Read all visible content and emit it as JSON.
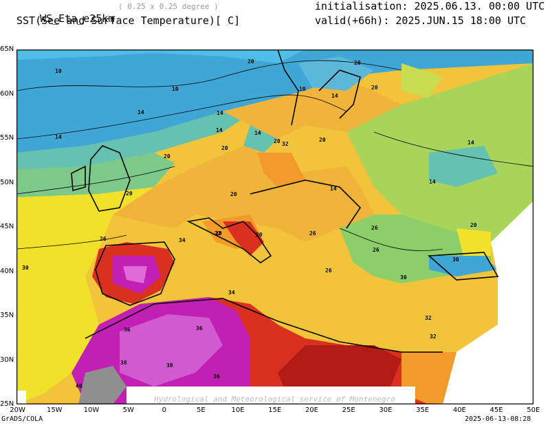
{
  "header": {
    "model": "WS_Eta_e25km",
    "resolution": "( 0.25 x 0.25 degree )",
    "initialisation": "initialisation: 2025.06.13. 00:00 UTC",
    "field": "SST(See and Surface Temperature)[ C]",
    "valid": "valid(+66h): 2025.JUN.15 18:00 UTC"
  },
  "map": {
    "lat_labels": [
      "65N",
      "60N",
      "55N",
      "50N",
      "45N",
      "40N",
      "35N",
      "30N",
      "25N"
    ],
    "lon_labels": [
      "20W",
      "15W",
      "10W",
      "5W",
      "0",
      "5E",
      "10E",
      "15E",
      "20E",
      "25E",
      "30E",
      "35E",
      "40E",
      "45E",
      "50E"
    ],
    "contour_labels": [
      "10",
      "10",
      "10",
      "14",
      "14",
      "14",
      "14",
      "14",
      "14",
      "14",
      "14",
      "14",
      "20",
      "20",
      "20",
      "20",
      "20",
      "20",
      "20",
      "20",
      "20",
      "20",
      "20",
      "20",
      "26",
      "26",
      "26",
      "26",
      "26",
      "30",
      "30",
      "30",
      "32",
      "32",
      "32",
      "32",
      "34",
      "34",
      "36",
      "36",
      "36",
      "38",
      "38",
      "40"
    ],
    "watermark": "Hydrological and Meteorological service of Montenegro",
    "colors": {
      "cold": "#3fa7d6",
      "cool": "#66c2b0",
      "mild": "#a8d45a",
      "warm": "#f2e12a",
      "hot": "#f29a2a",
      "very_hot": "#d9301f",
      "extreme": "#c21fb5",
      "max": "#8f8f8f"
    }
  },
  "footer": {
    "left": "GrADS/COLA",
    "right": "2025-06-13-08:28"
  }
}
